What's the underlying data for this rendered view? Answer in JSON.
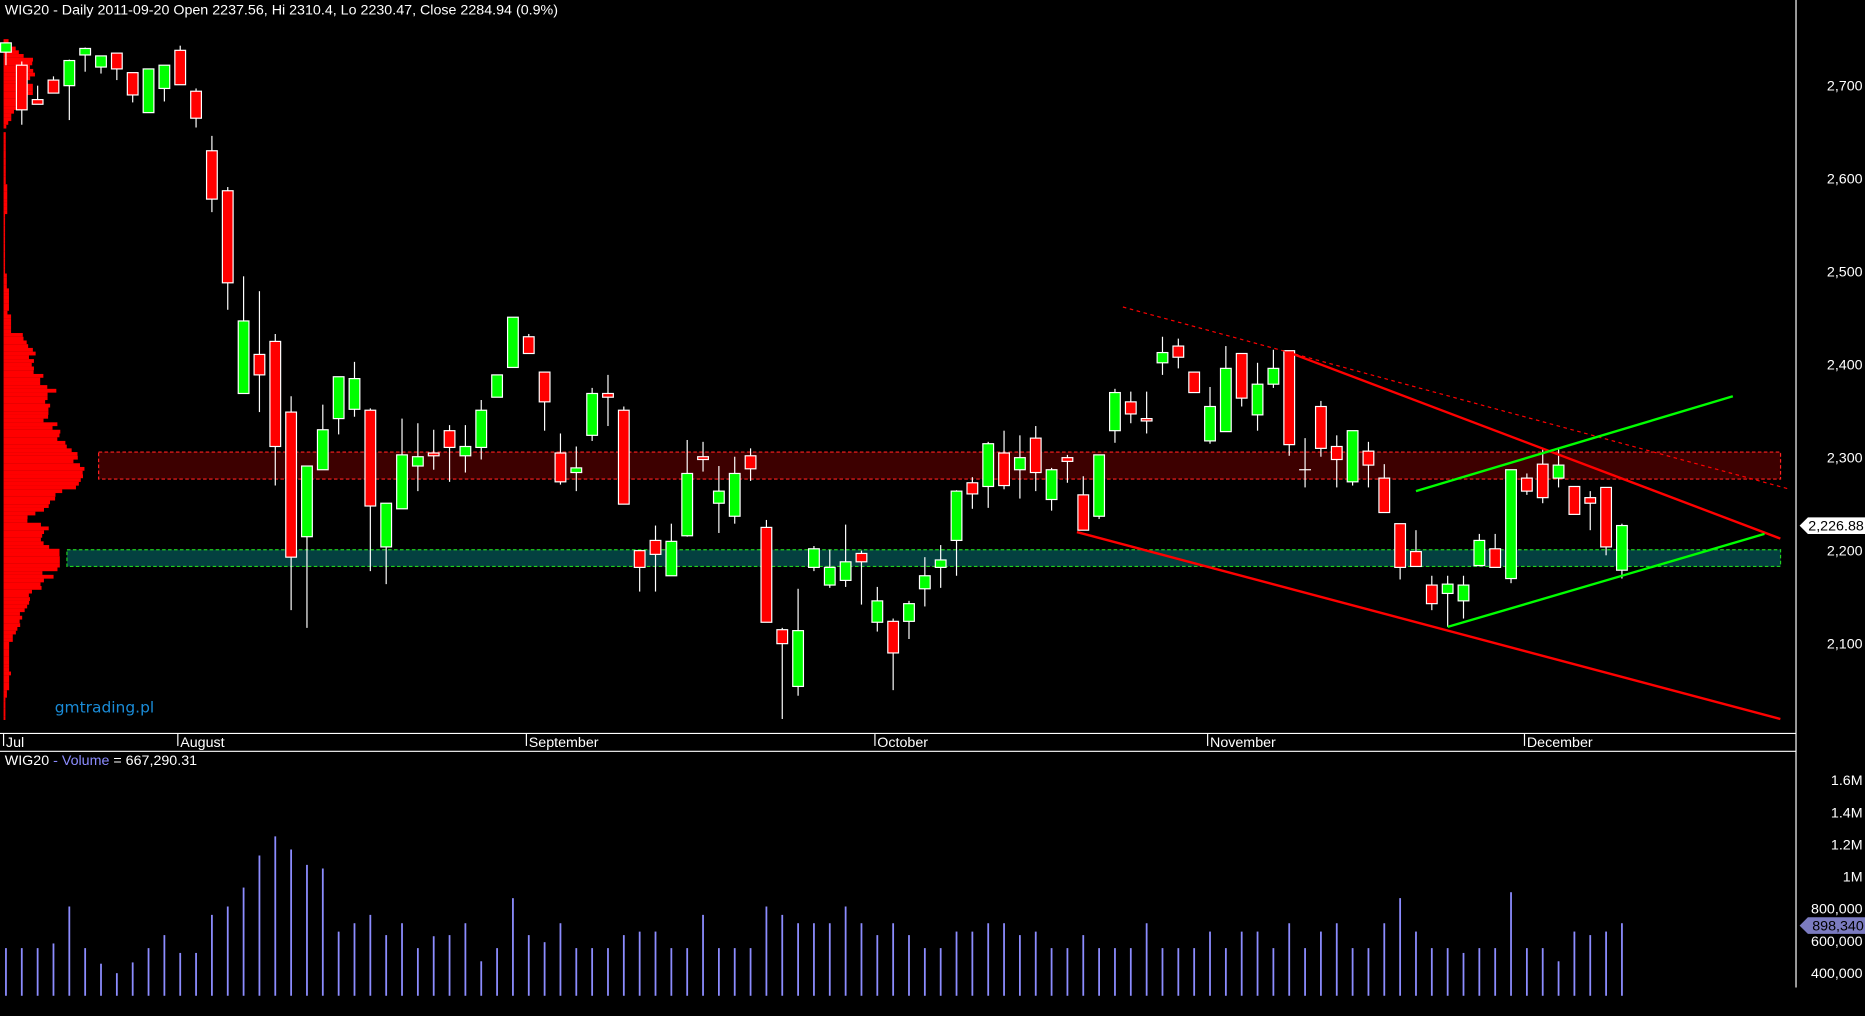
{
  "header": {
    "title": "WIG20 - Daily 2011-09-20 Open 2237.56, Hi 2310.4, Lo 2230.47, Close 2284.94 (0.9%)"
  },
  "volume_panel": {
    "symbol": "WIG20",
    "sep": " - ",
    "name": "Volume",
    "value": " = 667,290.31"
  },
  "watermark": "gmtrading.pl",
  "colors": {
    "up": "#00ff00",
    "down": "#ff0000",
    "volume": "#8c8cff",
    "profile": "#ff0000",
    "resistance_zone": "#3d0000",
    "support_zone": "#044040",
    "price_tag_bg": "#ffffff",
    "volume_tag_bg": "#7b7bc0"
  },
  "chart_data": [
    {
      "type": "candlestick",
      "title": "WIG20 - Daily",
      "months": [
        {
          "label": "Jul",
          "bar": 0
        },
        {
          "label": "August",
          "bar": 11
        },
        {
          "label": "September",
          "bar": 33
        },
        {
          "label": "October",
          "bar": 55
        },
        {
          "label": "November",
          "bar": 76
        },
        {
          "label": "December",
          "bar": 96
        }
      ],
      "y_ticks": [
        "2,700",
        "2,600",
        "2,500",
        "2,400",
        "2,300",
        "2,200",
        "2,100"
      ],
      "y_tick_values": [
        2700,
        2600,
        2500,
        2400,
        2300,
        2200,
        2100
      ],
      "last_price_label": "2,226.88",
      "last_price": 2226.88,
      "ohlc": [
        [
          2736,
          2746,
          2722,
          2746
        ],
        [
          2722,
          2726,
          2658,
          2674
        ],
        [
          2685,
          2700,
          2680,
          2680
        ],
        [
          2706,
          2710,
          2692,
          2692
        ],
        [
          2700,
          2728,
          2663,
          2727
        ],
        [
          2733,
          2741,
          2715,
          2740
        ],
        [
          2720,
          2732,
          2713,
          2732
        ],
        [
          2735,
          2735,
          2706,
          2718
        ],
        [
          2714,
          2714,
          2682,
          2690
        ],
        [
          2671,
          2718,
          2671,
          2718
        ],
        [
          2697,
          2722,
          2683,
          2722
        ],
        [
          2738,
          2743,
          2701,
          2701
        ],
        [
          2694,
          2697,
          2655,
          2665
        ],
        [
          2630,
          2646,
          2564,
          2578
        ],
        [
          2587,
          2591,
          2459,
          2488
        ],
        [
          2369,
          2495,
          2369,
          2447
        ],
        [
          2411,
          2479,
          2349,
          2389
        ],
        [
          2425,
          2433,
          2270,
          2312
        ],
        [
          2349,
          2366,
          2136,
          2193
        ],
        [
          2215,
          2291,
          2117,
          2291
        ],
        [
          2287,
          2357,
          2287,
          2330
        ],
        [
          2342,
          2387,
          2325,
          2387
        ],
        [
          2352,
          2403,
          2344,
          2385
        ],
        [
          2351,
          2353,
          2178,
          2248
        ],
        [
          2204,
          2251,
          2164,
          2251
        ],
        [
          2245,
          2342,
          2245,
          2303
        ],
        [
          2291,
          2337,
          2264,
          2301
        ],
        [
          2305,
          2330,
          2287,
          2302
        ],
        [
          2329,
          2335,
          2274,
          2311
        ],
        [
          2302,
          2335,
          2284,
          2312
        ],
        [
          2311,
          2362,
          2298,
          2351
        ],
        [
          2365,
          2389,
          2365,
          2389
        ],
        [
          2397,
          2451,
          2397,
          2451
        ],
        [
          2430,
          2433,
          2412,
          2412
        ],
        [
          2392,
          2392,
          2329,
          2360
        ],
        [
          2305,
          2326,
          2271,
          2274
        ],
        [
          2284,
          2312,
          2264,
          2289
        ],
        [
          2324,
          2375,
          2318,
          2369
        ],
        [
          2369,
          2389,
          2334,
          2365
        ],
        [
          2351,
          2355,
          2250,
          2250
        ],
        [
          2200,
          2200,
          2156,
          2182
        ],
        [
          2211,
          2227,
          2156,
          2196
        ],
        [
          2173,
          2229,
          2173,
          2210
        ],
        [
          2216,
          2319,
          2215,
          2283
        ],
        [
          2301,
          2317,
          2285,
          2298
        ],
        [
          2251,
          2291,
          2219,
          2264
        ],
        [
          2237,
          2301,
          2229,
          2283
        ],
        [
          2302,
          2310,
          2275,
          2288
        ],
        [
          2225,
          2233,
          2123,
          2123
        ],
        [
          2115,
          2117,
          2019,
          2100
        ],
        [
          2054,
          2159,
          2044,
          2114
        ],
        [
          2182,
          2205,
          2178,
          2202
        ],
        [
          2163,
          2201,
          2160,
          2182
        ],
        [
          2168,
          2228,
          2161,
          2188
        ],
        [
          2197,
          2200,
          2142,
          2188
        ],
        [
          2123,
          2161,
          2113,
          2146
        ],
        [
          2124,
          2127,
          2050,
          2090
        ],
        [
          2124,
          2146,
          2105,
          2143
        ],
        [
          2159,
          2193,
          2140,
          2173
        ],
        [
          2182,
          2206,
          2160,
          2190
        ],
        [
          2211,
          2265,
          2173,
          2264
        ],
        [
          2273,
          2279,
          2245,
          2261
        ],
        [
          2269,
          2317,
          2246,
          2315
        ],
        [
          2305,
          2329,
          2266,
          2270
        ],
        [
          2287,
          2324,
          2256,
          2300
        ],
        [
          2321,
          2334,
          2264,
          2284
        ],
        [
          2255,
          2289,
          2243,
          2287
        ],
        [
          2300,
          2303,
          2273,
          2296
        ],
        [
          2260,
          2280,
          2222,
          2222
        ],
        [
          2237,
          2303,
          2234,
          2303
        ],
        [
          2329,
          2374,
          2316,
          2370
        ],
        [
          2360,
          2371,
          2337,
          2347
        ],
        [
          2342,
          2371,
          2326,
          2340
        ],
        [
          2402,
          2430,
          2389,
          2413
        ],
        [
          2420,
          2428,
          2396,
          2408
        ],
        [
          2392,
          2392,
          2370,
          2370
        ],
        [
          2318,
          2376,
          2315,
          2355
        ],
        [
          2328,
          2420,
          2328,
          2396
        ],
        [
          2412,
          2412,
          2355,
          2364
        ],
        [
          2346,
          2402,
          2329,
          2379
        ],
        [
          2379,
          2416,
          2375,
          2396
        ],
        [
          2415,
          2415,
          2302,
          2314
        ],
        [
          2287,
          2321,
          2268,
          2287
        ],
        [
          2355,
          2361,
          2301,
          2310
        ],
        [
          2312,
          2324,
          2268,
          2298
        ],
        [
          2274,
          2329,
          2270,
          2329
        ],
        [
          2307,
          2317,
          2268,
          2292
        ],
        [
          2278,
          2293,
          2241,
          2241
        ],
        [
          2229,
          2229,
          2169,
          2182
        ],
        [
          2199,
          2222,
          2183,
          2183
        ],
        [
          2163,
          2173,
          2136,
          2143
        ],
        [
          2154,
          2173,
          2118,
          2164
        ],
        [
          2146,
          2173,
          2127,
          2163
        ],
        [
          2184,
          2218,
          2184,
          2211
        ],
        [
          2202,
          2218,
          2182,
          2182
        ],
        [
          2170,
          2287,
          2165,
          2287
        ],
        [
          2278,
          2283,
          2260,
          2264
        ],
        [
          2293,
          2309,
          2251,
          2257
        ],
        [
          2278,
          2309,
          2268,
          2292
        ],
        [
          2269,
          2269,
          2239,
          2239
        ],
        [
          2257,
          2264,
          2222,
          2251
        ],
        [
          2268,
          2268,
          2195,
          2204
        ],
        [
          2179,
          2229,
          2170,
          2227
        ]
      ],
      "zones": [
        {
          "name": "resistance",
          "from_bar": 6,
          "low": 2277,
          "high": 2306
        },
        {
          "name": "support",
          "from_bar": 4,
          "low": 2183,
          "high": 2201
        }
      ],
      "trendlines": [
        {
          "name": "dotted-resistance",
          "style": "dotted",
          "color": "#ff0000",
          "p1": [
            70.5,
            2462
          ],
          "p2": [
            112.6,
            2266
          ]
        },
        {
          "name": "upper-channel",
          "style": "solid",
          "color": "#ff0000",
          "p1": [
            81,
            2413
          ],
          "p2": [
            112,
            2213
          ]
        },
        {
          "name": "lower-channel",
          "style": "solid",
          "color": "#ff0000",
          "p1": [
            67.6,
            2220
          ],
          "p2": [
            112,
            2019
          ]
        },
        {
          "name": "rising-upper",
          "style": "solid",
          "color": "#00ff00",
          "p1": [
            89,
            2264
          ],
          "p2": [
            109,
            2366
          ]
        },
        {
          "name": "rising-lower",
          "style": "solid",
          "color": "#00ff00",
          "p1": [
            91,
            2118
          ],
          "p2": [
            111,
            2218
          ]
        }
      ]
    },
    {
      "type": "bar",
      "title": "Volume",
      "y_ticks": [
        "1.6M",
        "1.4M",
        "1.2M",
        "1M",
        "800,000",
        "600,000",
        "400,000"
      ],
      "y_tick_values": [
        1600000,
        1400000,
        1200000,
        1000000,
        800000,
        600000,
        400000
      ],
      "marker_label": "898,340",
      "values": [
        556000,
        556000,
        556000,
        585000,
        815000,
        556000,
        459000,
        400000,
        467000,
        556000,
        637000,
        526000,
        526000,
        763000,
        815000,
        933000,
        1133000,
        1252000,
        1170000,
        1074000,
        1052000,
        659000,
        711000,
        763000,
        637000,
        711000,
        556000,
        630000,
        637000,
        711000,
        474000,
        556000,
        867000,
        637000,
        593000,
        711000,
        556000,
        556000,
        556000,
        637000,
        659000,
        659000,
        556000,
        556000,
        763000,
        556000,
        556000,
        556000,
        815000,
        763000,
        711000,
        711000,
        711000,
        815000,
        711000,
        637000,
        711000,
        637000,
        556000,
        556000,
        659000,
        659000,
        711000,
        711000,
        637000,
        659000,
        556000,
        556000,
        637000,
        556000,
        556000,
        556000,
        711000,
        556000,
        556000,
        556000,
        659000,
        556000,
        659000,
        659000,
        556000,
        711000,
        556000,
        659000,
        711000,
        556000,
        556000,
        711000,
        867000,
        659000,
        556000,
        556000,
        526000,
        556000,
        556000,
        904000,
        556000,
        556000,
        474000,
        659000,
        637000,
        659000,
        711000
      ]
    }
  ]
}
